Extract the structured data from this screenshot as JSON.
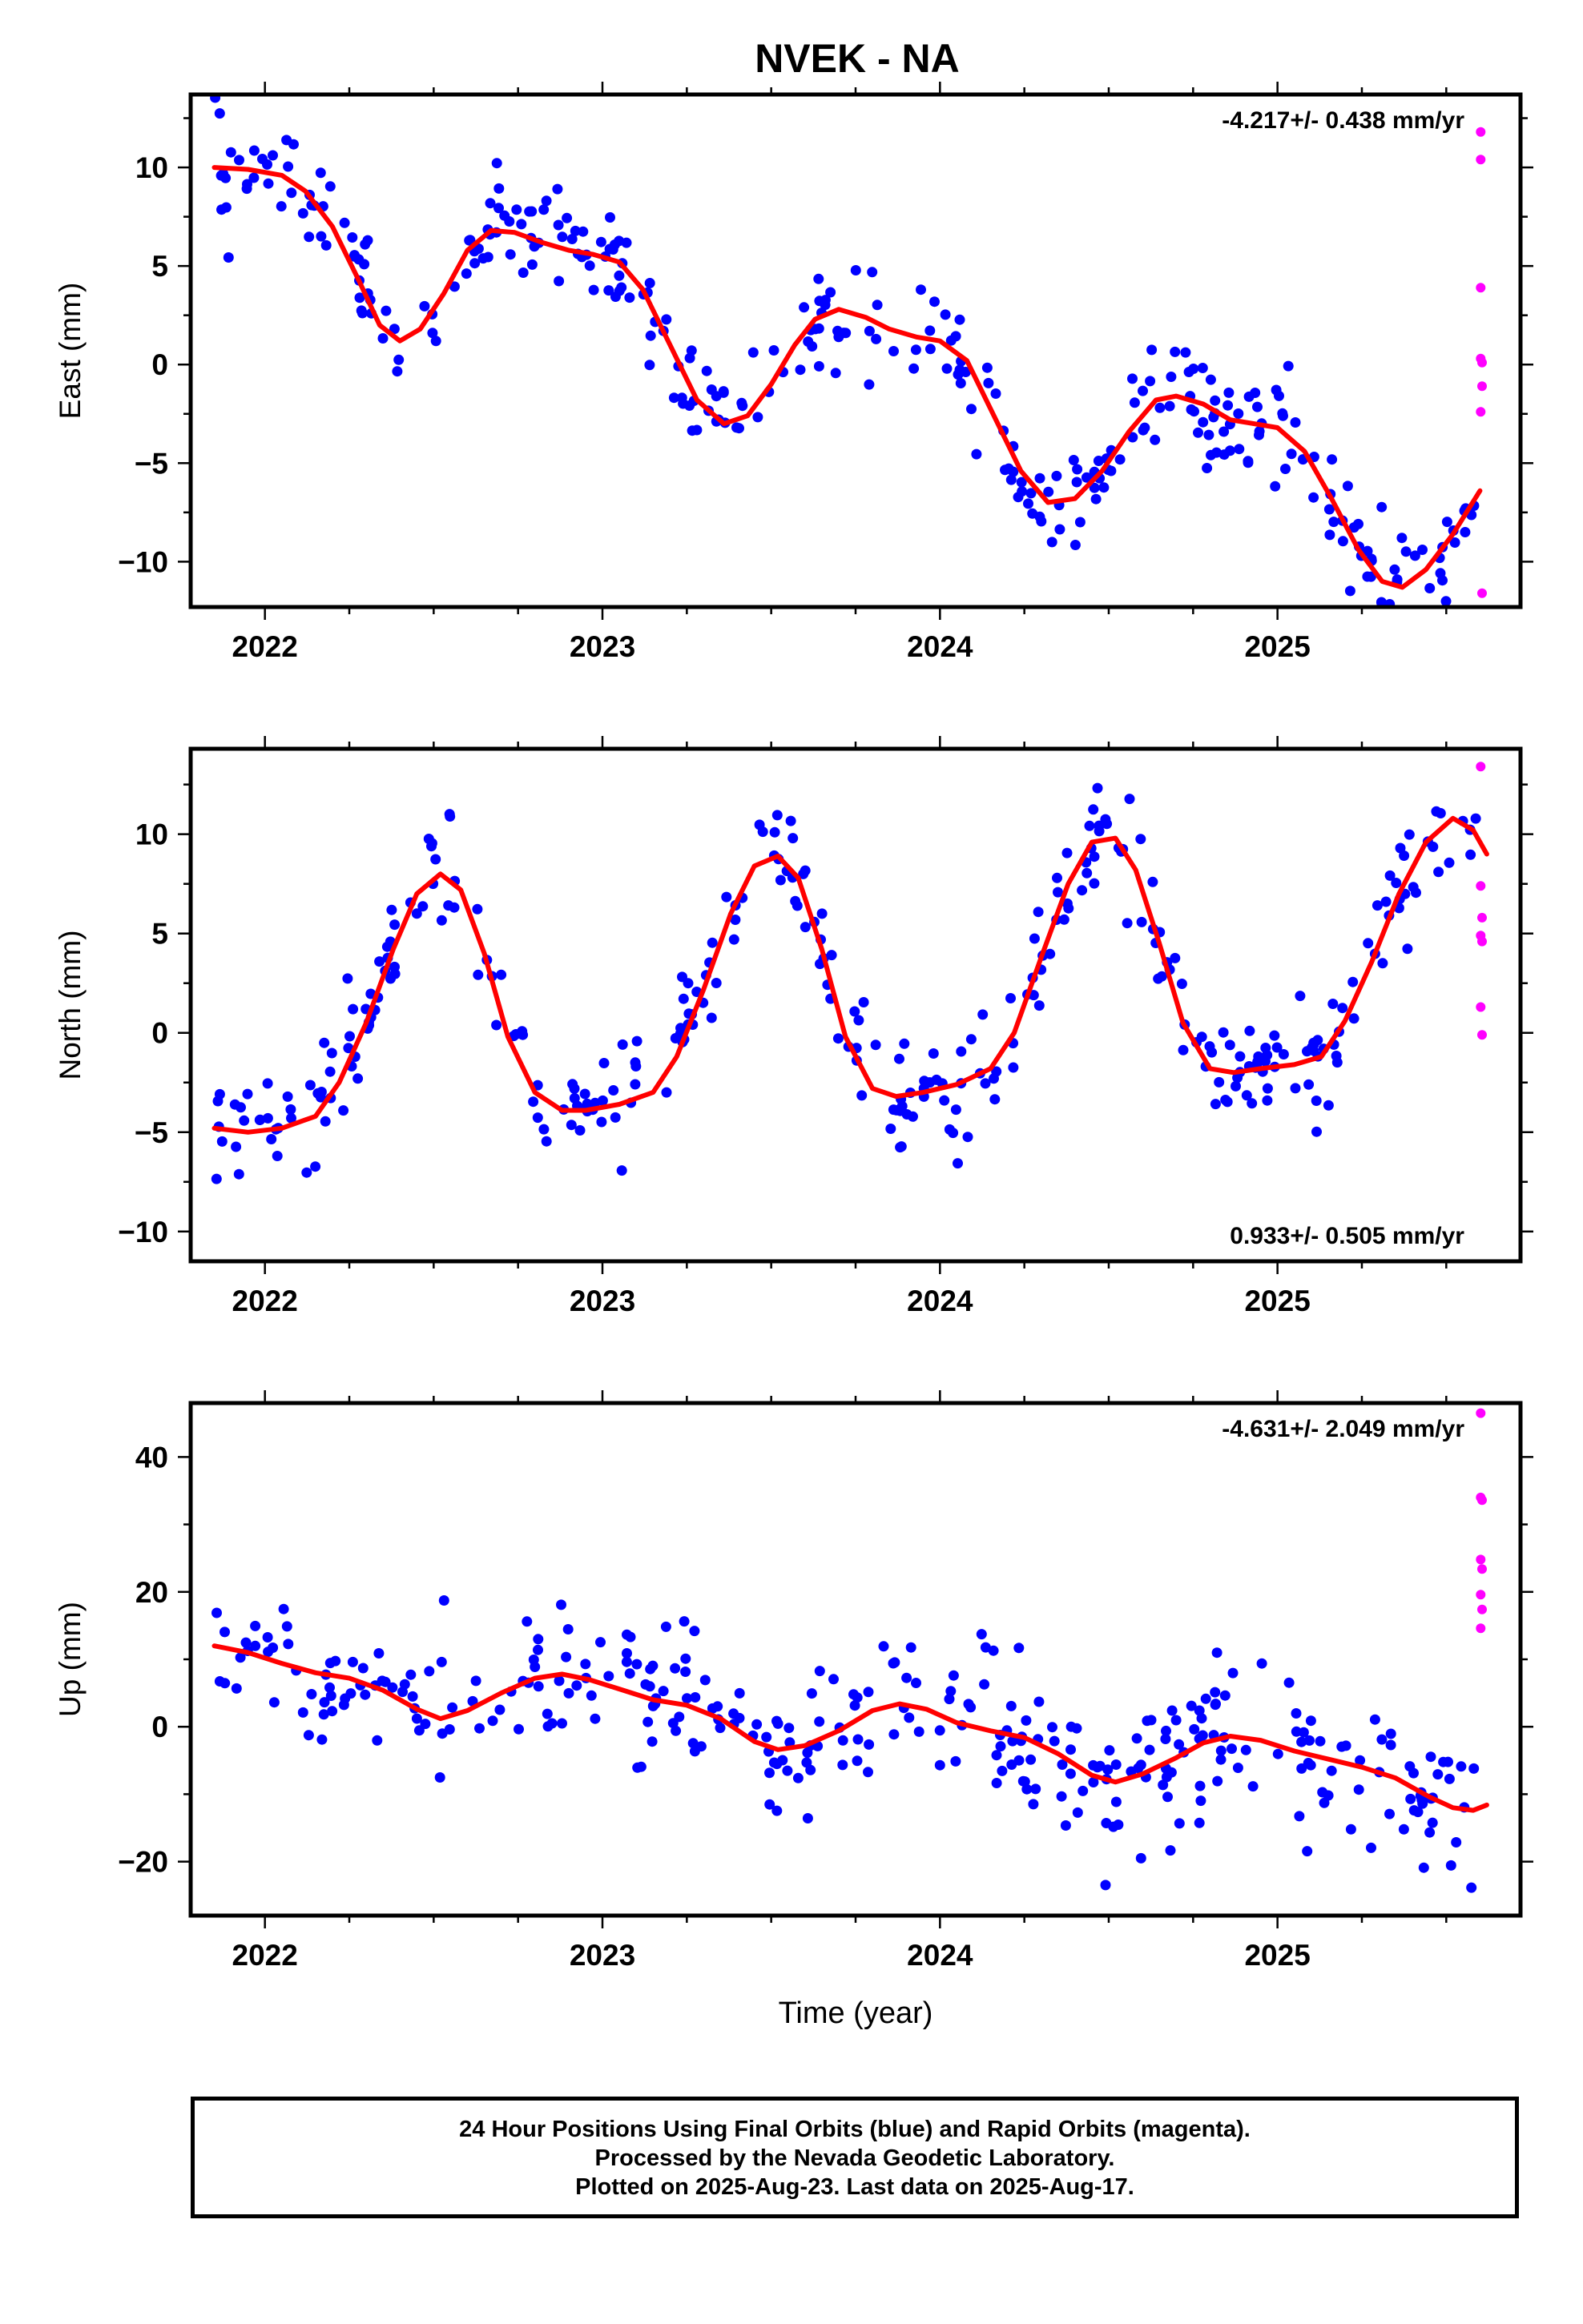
{
  "title": "NVEK - NA",
  "colors": {
    "final_orbits": "#0000ff",
    "rapid_orbits": "#ff00ff",
    "model": "#ff0000",
    "frame": "#000000"
  },
  "footer": {
    "line1": "24 Hour Positions Using Final Orbits (blue) and Rapid Orbits (magenta).",
    "line2": "Processed by the Nevada Geodetic Laboratory.",
    "line3": "Plotted on 2025-Aug-23. Last data on 2025-Aug-17."
  },
  "chart_data": [
    {
      "type": "scatter",
      "ylabel": "East (mm)",
      "xlabel": "",
      "rate_label": "-4.217+/- 0.438 mm/yr",
      "rate_position": "top-right",
      "xlim": [
        2021.78,
        2025.72
      ],
      "ylim": [
        -12.3,
        13.7
      ],
      "xticks": [
        2022,
        2023,
        2024,
        2025
      ],
      "xtick_labels": [
        "2022",
        "2023",
        "2024",
        "2025"
      ],
      "yticks": [
        -10,
        -5,
        0,
        5,
        10
      ],
      "ytick_labels": [
        "−10",
        "−5",
        "0",
        "5",
        "10"
      ],
      "grid": false,
      "noise_std": 1.3,
      "model_curve": [
        [
          2021.85,
          10.0
        ],
        [
          2021.95,
          9.9
        ],
        [
          2022.05,
          9.6
        ],
        [
          2022.12,
          8.8
        ],
        [
          2022.2,
          7.0
        ],
        [
          2022.28,
          4.2
        ],
        [
          2022.34,
          2.0
        ],
        [
          2022.4,
          1.2
        ],
        [
          2022.46,
          1.8
        ],
        [
          2022.53,
          3.6
        ],
        [
          2022.6,
          5.8
        ],
        [
          2022.67,
          6.8
        ],
        [
          2022.74,
          6.7
        ],
        [
          2022.82,
          6.2
        ],
        [
          2022.9,
          5.8
        ],
        [
          2022.97,
          5.6
        ],
        [
          2023.05,
          5.2
        ],
        [
          2023.12,
          3.8
        ],
        [
          2023.2,
          1.0
        ],
        [
          2023.28,
          -1.8
        ],
        [
          2023.36,
          -3.0
        ],
        [
          2023.43,
          -2.6
        ],
        [
          2023.5,
          -1.0
        ],
        [
          2023.57,
          1.0
        ],
        [
          2023.63,
          2.3
        ],
        [
          2023.7,
          2.8
        ],
        [
          2023.78,
          2.4
        ],
        [
          2023.85,
          1.8
        ],
        [
          2023.93,
          1.4
        ],
        [
          2024.0,
          1.2
        ],
        [
          2024.08,
          0.2
        ],
        [
          2024.16,
          -2.6
        ],
        [
          2024.24,
          -5.4
        ],
        [
          2024.32,
          -7.0
        ],
        [
          2024.4,
          -6.8
        ],
        [
          2024.48,
          -5.4
        ],
        [
          2024.56,
          -3.4
        ],
        [
          2024.64,
          -1.8
        ],
        [
          2024.7,
          -1.6
        ],
        [
          2024.78,
          -2.0
        ],
        [
          2024.86,
          -2.8
        ],
        [
          2024.93,
          -3.0
        ],
        [
          2025.0,
          -3.2
        ],
        [
          2025.08,
          -4.4
        ],
        [
          2025.16,
          -6.8
        ],
        [
          2025.24,
          -9.4
        ],
        [
          2025.31,
          -11.0
        ],
        [
          2025.37,
          -11.3
        ],
        [
          2025.44,
          -10.4
        ],
        [
          2025.52,
          -8.6
        ],
        [
          2025.6,
          -6.4
        ]
      ],
      "rapid_points": [
        [
          2025.602,
          11.8
        ],
        [
          2025.602,
          10.4
        ],
        [
          2025.602,
          3.9
        ],
        [
          2025.602,
          0.3
        ],
        [
          2025.606,
          0.1
        ],
        [
          2025.606,
          -1.1
        ],
        [
          2025.602,
          -2.4
        ],
        [
          2025.606,
          -11.6
        ]
      ]
    },
    {
      "type": "scatter",
      "ylabel": "North (mm)",
      "xlabel": "",
      "rate_label": "0.933+/- 0.505 mm/yr",
      "rate_position": "bottom-right",
      "xlim": [
        2021.78,
        2025.72
      ],
      "ylim": [
        -11.5,
        14.3
      ],
      "xticks": [
        2022,
        2023,
        2024,
        2025
      ],
      "xtick_labels": [
        "2022",
        "2023",
        "2024",
        "2025"
      ],
      "yticks": [
        -10,
        -5,
        0,
        5,
        10
      ],
      "ytick_labels": [
        "−10",
        "−5",
        "0",
        "5",
        "10"
      ],
      "grid": false,
      "noise_std": 1.4,
      "model_curve": [
        [
          2021.85,
          -4.8
        ],
        [
          2021.95,
          -5.0
        ],
        [
          2022.05,
          -4.8
        ],
        [
          2022.15,
          -4.2
        ],
        [
          2022.22,
          -2.5
        ],
        [
          2022.3,
          0.5
        ],
        [
          2022.38,
          4.2
        ],
        [
          2022.45,
          7.0
        ],
        [
          2022.52,
          8.0
        ],
        [
          2022.58,
          7.2
        ],
        [
          2022.65,
          4.0
        ],
        [
          2022.72,
          -0.2
        ],
        [
          2022.8,
          -3.0
        ],
        [
          2022.88,
          -3.9
        ],
        [
          2022.95,
          -3.9
        ],
        [
          2023.05,
          -3.6
        ],
        [
          2023.15,
          -3.0
        ],
        [
          2023.22,
          -1.2
        ],
        [
          2023.3,
          2.2
        ],
        [
          2023.38,
          6.0
        ],
        [
          2023.45,
          8.4
        ],
        [
          2023.52,
          8.9
        ],
        [
          2023.58,
          7.8
        ],
        [
          2023.65,
          4.2
        ],
        [
          2023.72,
          -0.2
        ],
        [
          2023.8,
          -2.8
        ],
        [
          2023.87,
          -3.2
        ],
        [
          2023.95,
          -3.0
        ],
        [
          2024.05,
          -2.6
        ],
        [
          2024.15,
          -1.8
        ],
        [
          2024.22,
          0.0
        ],
        [
          2024.3,
          3.8
        ],
        [
          2024.38,
          7.5
        ],
        [
          2024.45,
          9.6
        ],
        [
          2024.52,
          9.8
        ],
        [
          2024.58,
          8.2
        ],
        [
          2024.65,
          4.5
        ],
        [
          2024.72,
          0.5
        ],
        [
          2024.8,
          -1.8
        ],
        [
          2024.87,
          -2.0
        ],
        [
          2024.95,
          -1.8
        ],
        [
          2025.05,
          -1.6
        ],
        [
          2025.13,
          -1.2
        ],
        [
          2025.2,
          0.6
        ],
        [
          2025.28,
          3.6
        ],
        [
          2025.36,
          7.0
        ],
        [
          2025.44,
          9.6
        ],
        [
          2025.52,
          10.8
        ],
        [
          2025.58,
          10.2
        ],
        [
          2025.62,
          9.0
        ]
      ],
      "rapid_points": [
        [
          2025.602,
          13.4
        ],
        [
          2025.602,
          7.4
        ],
        [
          2025.606,
          5.8
        ],
        [
          2025.602,
          4.9
        ],
        [
          2025.606,
          4.6
        ],
        [
          2025.602,
          1.3
        ],
        [
          2025.606,
          -0.1
        ]
      ]
    },
    {
      "type": "scatter",
      "ylabel": "Up (mm)",
      "xlabel": "Time (year)",
      "rate_label": "-4.631+/- 2.049 mm/yr",
      "rate_position": "top-right",
      "xlim": [
        2021.78,
        2025.72
      ],
      "ylim": [
        -28,
        48
      ],
      "xticks": [
        2022,
        2023,
        2024,
        2025
      ],
      "xtick_labels": [
        "2022",
        "2023",
        "2024",
        "2025"
      ],
      "yticks": [
        -20,
        0,
        20,
        40
      ],
      "ytick_labels": [
        "−20",
        "0",
        "20",
        "40"
      ],
      "grid": false,
      "noise_std": 5.5,
      "model_curve": [
        [
          2021.85,
          12.0
        ],
        [
          2021.95,
          11.0
        ],
        [
          2022.05,
          9.4
        ],
        [
          2022.15,
          8.0
        ],
        [
          2022.25,
          7.2
        ],
        [
          2022.35,
          5.4
        ],
        [
          2022.45,
          2.6
        ],
        [
          2022.52,
          1.2
        ],
        [
          2022.6,
          2.4
        ],
        [
          2022.7,
          5.0
        ],
        [
          2022.8,
          7.2
        ],
        [
          2022.88,
          7.8
        ],
        [
          2022.96,
          7.0
        ],
        [
          2023.05,
          5.6
        ],
        [
          2023.15,
          4.0
        ],
        [
          2023.25,
          3.2
        ],
        [
          2023.35,
          1.2
        ],
        [
          2023.45,
          -2.2
        ],
        [
          2023.52,
          -3.4
        ],
        [
          2023.6,
          -2.8
        ],
        [
          2023.7,
          -0.6
        ],
        [
          2023.8,
          2.4
        ],
        [
          2023.88,
          3.4
        ],
        [
          2023.96,
          2.6
        ],
        [
          2024.05,
          0.6
        ],
        [
          2024.15,
          -0.6
        ],
        [
          2024.25,
          -1.6
        ],
        [
          2024.35,
          -4.0
        ],
        [
          2024.45,
          -7.2
        ],
        [
          2024.52,
          -8.2
        ],
        [
          2024.6,
          -7.0
        ],
        [
          2024.7,
          -4.6
        ],
        [
          2024.78,
          -2.4
        ],
        [
          2024.86,
          -1.4
        ],
        [
          2024.95,
          -2.0
        ],
        [
          2025.05,
          -3.6
        ],
        [
          2025.15,
          -4.8
        ],
        [
          2025.25,
          -6.0
        ],
        [
          2025.35,
          -7.6
        ],
        [
          2025.45,
          -10.4
        ],
        [
          2025.52,
          -12.0
        ],
        [
          2025.58,
          -12.4
        ],
        [
          2025.62,
          -11.6
        ]
      ],
      "rapid_points": [
        [
          2025.602,
          46.5
        ],
        [
          2025.602,
          34.0
        ],
        [
          2025.606,
          33.6
        ],
        [
          2025.602,
          24.8
        ],
        [
          2025.606,
          23.4
        ],
        [
          2025.602,
          19.6
        ],
        [
          2025.606,
          17.4
        ],
        [
          2025.602,
          14.6
        ]
      ]
    }
  ],
  "final_points_meta": {
    "x_start": 2021.85,
    "x_end": 2025.59,
    "count": 340
  }
}
